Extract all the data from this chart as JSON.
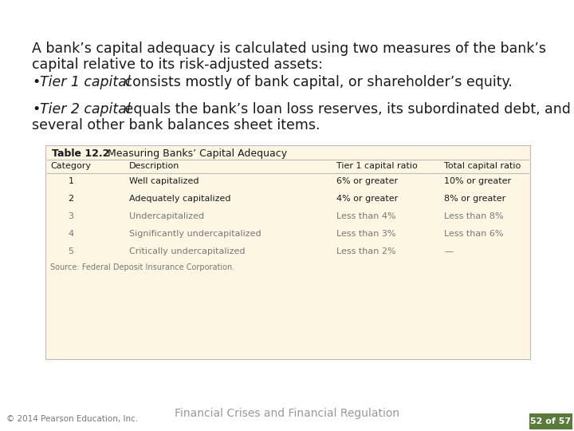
{
  "bg_color": "#ffffff",
  "para1_line1": "A bank’s capital adequacy is calculated using two measures of the bank’s",
  "para1_line2": "capital relative to its risk-adjusted assets:",
  "bullet1_italic": "Tier 1 capital",
  "bullet1_rest": " consists mostly of bank capital, or shareholder’s equity.",
  "bullet2_italic": "Tier 2 capital",
  "bullet2_rest": " equals the bank’s loan loss reserves, its subordinated debt, and",
  "bullet2_line2": "several other bank balances sheet items.",
  "table_title_bold": "Table 12.2",
  "table_title_rest": "  Measuring Banks’ Capital Adequacy",
  "table_bg": "#fdf6e3",
  "col_headers": [
    "Category",
    "Description",
    "Tier 1 capital ratio",
    "Total capital ratio"
  ],
  "rows": [
    [
      "1",
      "Well capitalized",
      "6% or greater",
      "10% or greater"
    ],
    [
      "2",
      "Adequately capitalized",
      "4% or greater",
      "8% or greater"
    ],
    [
      "3",
      "Undercapitalized",
      "Less than 4%",
      "Less than 8%"
    ],
    [
      "4",
      "Significantly undercapitalized",
      "Less than 3%",
      "Less than 6%"
    ],
    [
      "5",
      "Critically undercapitalized",
      "Less than 2%",
      "—"
    ]
  ],
  "source_text": "Source: Federal Deposit Insurance Corporation.",
  "footer_title": "Financial Crises and Financial Regulation",
  "footer_copy": "© 2014 Pearson Education, Inc.",
  "footer_page": "52 of 57",
  "footer_page_bg": "#5a7a3a",
  "dark_text": "#1a1a1a",
  "gray_text": "#999999",
  "mid_gray": "#777777",
  "table_border": "#bbbbbb"
}
